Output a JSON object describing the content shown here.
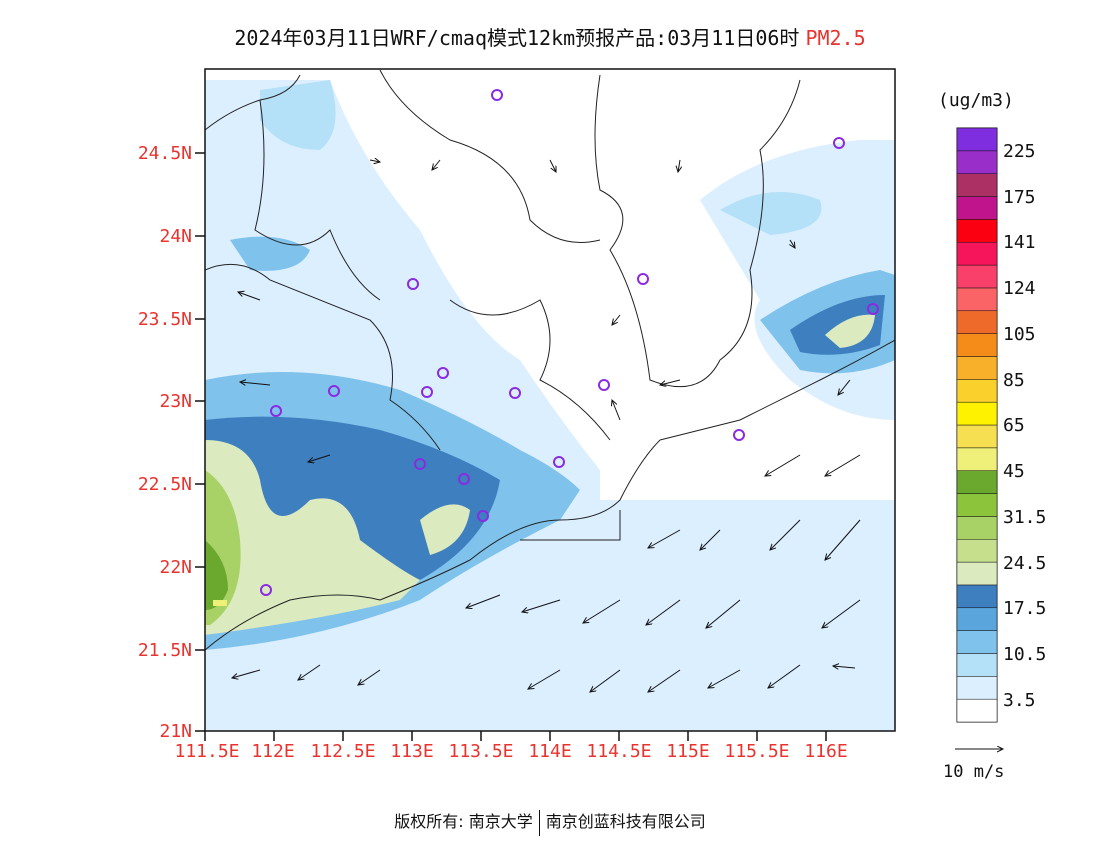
{
  "title": {
    "main": "2024年03月11日WRF/cmaq模式12km预报产品:03月11日06时",
    "variable": "PM2.5"
  },
  "axes": {
    "lat_labels": [
      "24.5N",
      "24N",
      "23.5N",
      "23N",
      "22.5N",
      "22N",
      "21.5N",
      "21N"
    ],
    "lon_labels": [
      "111.5E",
      "112E",
      "112.5E",
      "113E",
      "113.5E",
      "114E",
      "114.5E",
      "115E",
      "115.5E",
      "116E"
    ]
  },
  "colorbar": {
    "unit": "(ug/m3)",
    "colors": [
      "#ffffff",
      "#dcefff",
      "#b4e0f8",
      "#7fc2ec",
      "#5aa5dc",
      "#3e7fc0",
      "#dceac0",
      "#c6df8c",
      "#a8d266",
      "#8cc43c",
      "#6aa82e",
      "#eef07a",
      "#f6e052",
      "#fef200",
      "#fad02c",
      "#f8b02a",
      "#f58c1a",
      "#ee6a2a",
      "#fa6466",
      "#f8406a",
      "#f6145a",
      "#fa0010",
      "#c0148c",
      "#ac3064",
      "#9a2ec8",
      "#7e2ede"
    ],
    "labels": [
      "3.5",
      "10.5",
      "17.5",
      "24.5",
      "31.5",
      "45",
      "65",
      "85",
      "105",
      "124",
      "141",
      "175",
      "225"
    ]
  },
  "wind_vector": {
    "label": "10 m/s"
  },
  "footer": {
    "left": "版权所有: 南京大学",
    "right": "南京创蓝科技有限公司"
  }
}
